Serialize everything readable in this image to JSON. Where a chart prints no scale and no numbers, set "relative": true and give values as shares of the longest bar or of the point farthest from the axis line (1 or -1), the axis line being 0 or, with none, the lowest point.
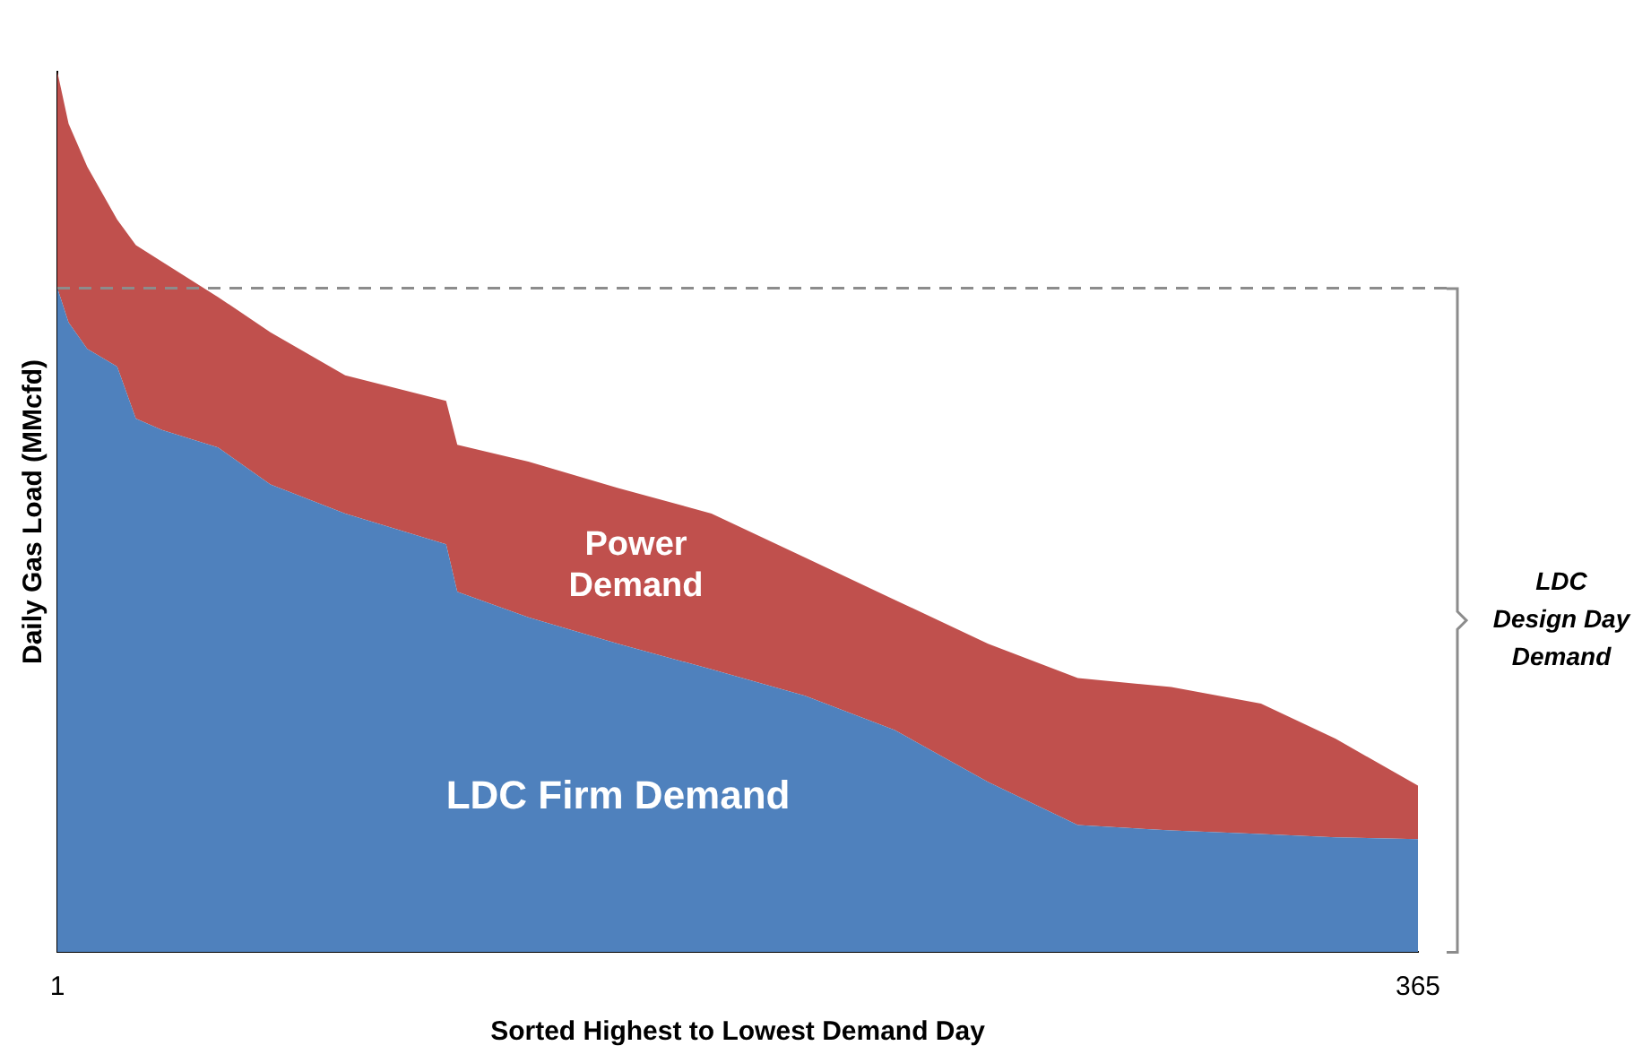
{
  "chart_data": {
    "type": "area",
    "stacked": true,
    "relative": true,
    "xlabel": "Sorted Highest to Lowest Demand Day",
    "ylabel": "Daily Gas Load (MMcfd)",
    "x": [
      1,
      4,
      9,
      17,
      22,
      29,
      44,
      58,
      78,
      105,
      108,
      127,
      151,
      176,
      201,
      225,
      250,
      274,
      299,
      323,
      343,
      365
    ],
    "xlim": [
      1,
      365
    ],
    "xticks": [
      1,
      365
    ],
    "grid": false,
    "legend": false,
    "series": [
      {
        "name": "LDC Firm Demand",
        "color": "#4f81bd",
        "values": [
          0.754,
          0.715,
          0.685,
          0.665,
          0.606,
          0.593,
          0.573,
          0.531,
          0.498,
          0.463,
          0.409,
          0.38,
          0.35,
          0.321,
          0.291,
          0.252,
          0.193,
          0.144,
          0.138,
          0.134,
          0.13,
          0.128
        ]
      },
      {
        "name": "Power Demand",
        "color": "#c0504d",
        "values": [
          0.246,
          0.226,
          0.207,
          0.167,
          0.197,
          0.191,
          0.171,
          0.173,
          0.157,
          0.163,
          0.167,
          0.177,
          0.177,
          0.177,
          0.157,
          0.148,
          0.157,
          0.167,
          0.163,
          0.148,
          0.112,
          0.061
        ]
      }
    ],
    "ref_lines": [
      {
        "axis": "y",
        "value": 0.754,
        "color": "#8c8c8c",
        "line_style": "dashed"
      }
    ],
    "annotations": [
      "LDC Design Day Demand"
    ]
  }
}
